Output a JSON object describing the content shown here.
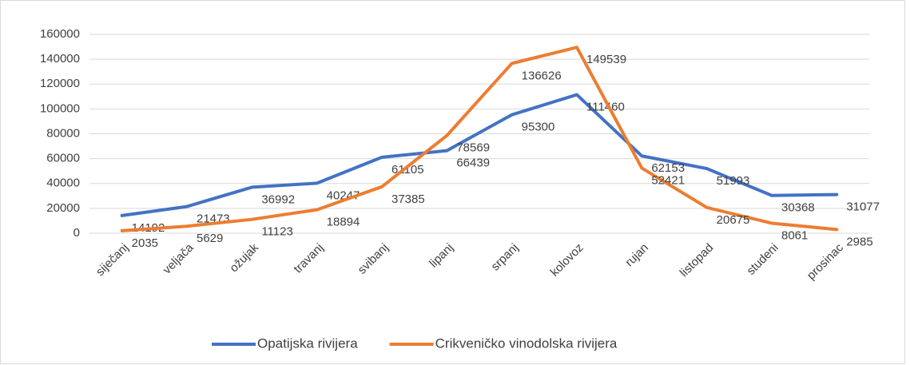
{
  "chart_data": {
    "type": "line",
    "categories": [
      "siječanj",
      "veljača",
      "ožujak",
      "travanj",
      "svibanj",
      "lipanj",
      "srpanj",
      "kolovoz",
      "rujan",
      "listopad",
      "studeni",
      "prosinac"
    ],
    "series": [
      {
        "name": "Opatijska rivijera",
        "color": "#4472c4",
        "values": [
          14192,
          21473,
          36992,
          40247,
          61105,
          66439,
          95300,
          111460,
          62153,
          51993,
          30368,
          31077
        ]
      },
      {
        "name": "Crikveničko vinodolska rivijera",
        "color": "#ed7d31",
        "values": [
          2035,
          5629,
          11123,
          18894,
          37385,
          78569,
          136626,
          149539,
          52421,
          20675,
          8061,
          2985
        ]
      }
    ],
    "ylim": [
      0,
      160000
    ],
    "yticks": [
      0,
      20000,
      40000,
      60000,
      80000,
      100000,
      120000,
      140000,
      160000
    ],
    "grid": true,
    "legend": "bottom"
  }
}
